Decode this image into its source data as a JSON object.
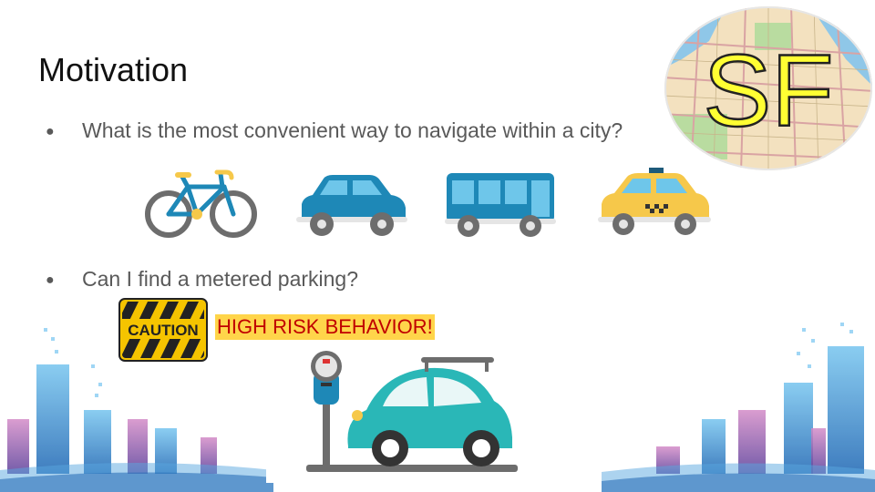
{
  "slide": {
    "title": "Motivation",
    "bullets": [
      "What is the most convenient way to navigate within a city?",
      "Can I find a metered parking?"
    ],
    "caution_sign": "CAUTION",
    "warning_text": "HIGH RISK BEHAVIOR!",
    "map_badge": "SF",
    "bullet_glyph": "●",
    "icons": [
      "bicycle-icon",
      "car-icon",
      "bus-icon",
      "taxi-icon",
      "parking-meter-icon",
      "caution-sign-icon",
      "city-skyline-icon"
    ]
  },
  "colors": {
    "title": "#111111",
    "bullet_text": "#595959",
    "warning_text": "#c00000",
    "warning_bg": "#ffd54a",
    "vehicle_blue": "#1e88b7",
    "taxi_yellow": "#f6c84a",
    "sf_yellow": "#ffff33"
  }
}
